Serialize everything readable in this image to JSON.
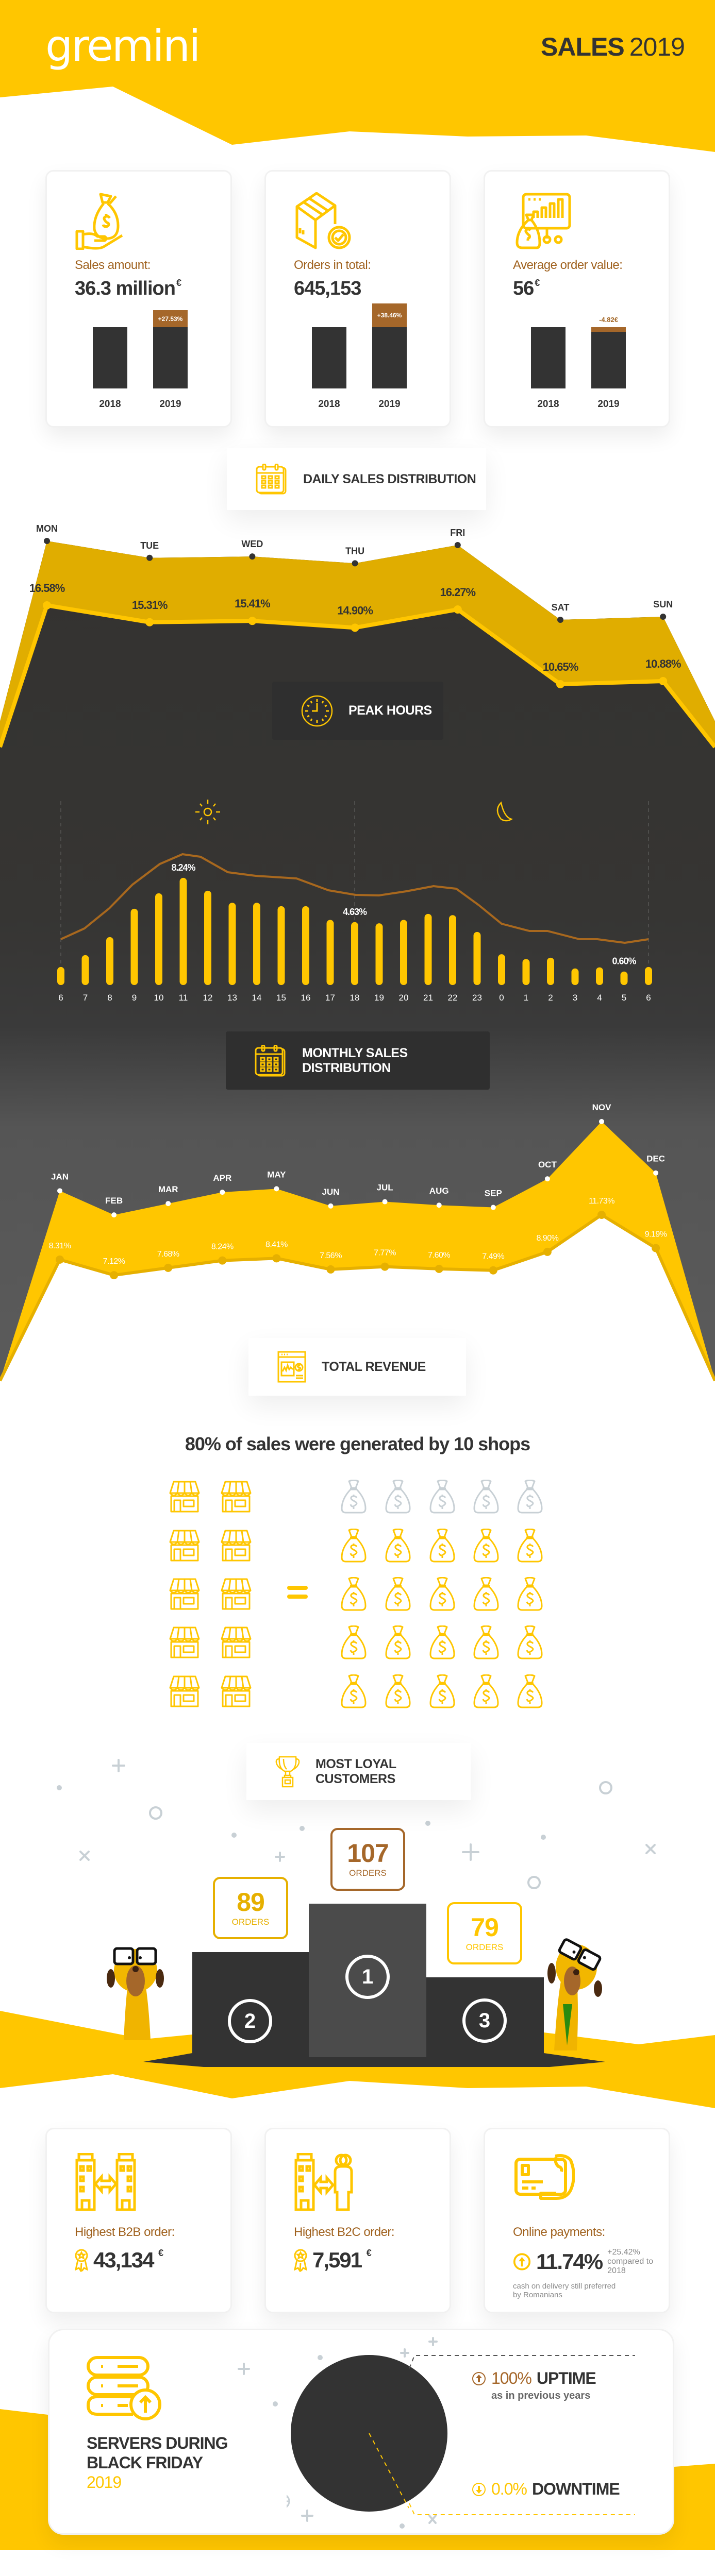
{
  "header": {
    "logo": "gremini",
    "title_bold": "SALES",
    "title_light": "2019"
  },
  "stats": [
    {
      "label": "Sales amount:",
      "value": "36.3 million",
      "unit": "€",
      "change": "+27.53%",
      "index_2018": 100,
      "index_2019": 127.53,
      "icon": "money-bag-hand-icon"
    },
    {
      "label": "Orders in total:",
      "value": "645,153",
      "unit": "",
      "change": "+38.46%",
      "index_2018": 100,
      "index_2019": 138.46,
      "icon": "package-check-icon"
    },
    {
      "label": "Average order value:",
      "value": "56",
      "unit": "€",
      "change": "-4.82€",
      "index_2018": 100,
      "index_2019": 92.07,
      "icon": "chart-monitor-money-icon"
    }
  ],
  "years": [
    "2018",
    "2019"
  ],
  "sections": {
    "daily": "DAILY SALES DISTRIBUTION",
    "peak": "PEAK HOURS",
    "monthly": "MONTHLY SALES DISTRIBUTION",
    "revenue": "TOTAL REVENUE",
    "loyal": "MOST LOYAL CUSTOMERS"
  },
  "chart_data": [
    {
      "type": "area",
      "title": "DAILY SALES DISTRIBUTION",
      "categories": [
        "MON",
        "TUE",
        "WED",
        "THU",
        "FRI",
        "SAT",
        "SUN"
      ],
      "values": [
        16.58,
        15.31,
        15.41,
        14.9,
        16.27,
        10.65,
        10.88
      ],
      "labels": [
        "16.58%",
        "15.31%",
        "15.41%",
        "14.90%",
        "16.27%",
        "10.65%",
        "10.88%"
      ],
      "unit": "%"
    },
    {
      "type": "bar",
      "title": "PEAK HOURS",
      "categories": [
        "6",
        "7",
        "8",
        "9",
        "10",
        "11",
        "12",
        "13",
        "14",
        "15",
        "16",
        "17",
        "18",
        "19",
        "20",
        "21",
        "22",
        "23",
        "0",
        "1",
        "2",
        "3",
        "4",
        "5",
        "6"
      ],
      "values": [
        0.97,
        1.94,
        3.41,
        5.72,
        6.98,
        8.24,
        7.19,
        6.21,
        6.21,
        5.93,
        5.93,
        4.81,
        4.63,
        4.53,
        4.81,
        5.3,
        5.2,
        3.83,
        2.01,
        1.62,
        1.73,
        0.85,
        0.94,
        0.6,
        0.97
      ],
      "annotations": [
        {
          "index": 5,
          "label": "8.24%"
        },
        {
          "index": 12,
          "label": "4.63%"
        },
        {
          "index": 23,
          "label": "0.60%"
        }
      ],
      "unit": "%"
    },
    {
      "type": "area",
      "title": "MONTHLY SALES DISTRIBUTION",
      "categories": [
        "JAN",
        "FEB",
        "MAR",
        "APR",
        "MAY",
        "JUN",
        "JUL",
        "AUG",
        "SEP",
        "OCT",
        "NOV",
        "DEC"
      ],
      "values": [
        8.31,
        7.12,
        7.68,
        8.24,
        8.41,
        7.56,
        7.77,
        7.6,
        7.49,
        8.9,
        11.73,
        9.19
      ],
      "labels": [
        "8.31%",
        "7.12%",
        "7.68%",
        "8.24%",
        "8.41%",
        "7.56%",
        "7.77%",
        "7.60%",
        "7.49%",
        "8.90%",
        "11.73%",
        "9.19%"
      ],
      "unit": "%"
    }
  ],
  "revenue": {
    "headline": "80% of sales were generated by 10 shops",
    "shops": 10,
    "bags_total": 25,
    "bags_highlighted": 20,
    "equals": "="
  },
  "loyal": {
    "podium": [
      {
        "place": "2",
        "orders": "89",
        "label": "ORDERS"
      },
      {
        "place": "1",
        "orders": "107",
        "label": "ORDERS"
      },
      {
        "place": "3",
        "orders": "79",
        "label": "ORDERS"
      }
    ]
  },
  "highlights": [
    {
      "label": "Highest B2B order:",
      "value": "43,134",
      "unit": "€",
      "icon": "buildings-exchange-icon"
    },
    {
      "label": "Highest B2C order:",
      "value": "7,591",
      "unit": "€",
      "icon": "building-people-exchange-icon"
    },
    {
      "label": "Online payments:",
      "value": "11.74%",
      "change": "+25.42%",
      "change_note": "compared to 2018",
      "note_line1": "cash on delivery still preferred",
      "note_line2": "by Romanians",
      "icon": "card-hand-icon"
    }
  ],
  "servers": {
    "title_line1": "SERVERS DURING",
    "title_line2": "BLACK FRIDAY",
    "year": "2019",
    "uptime_value": "100%",
    "uptime_label": "UPTIME",
    "uptime_note": "as in previous years",
    "downtime_value": "0.0%",
    "downtime_label": "DOWNTIME",
    "uptime_pct": 100
  },
  "colors": {
    "yellow": "#ffc600",
    "gold": "#e0ad00",
    "brown": "#a5672a",
    "dark": "#333333",
    "grey_icon": "#c8d0d5"
  }
}
